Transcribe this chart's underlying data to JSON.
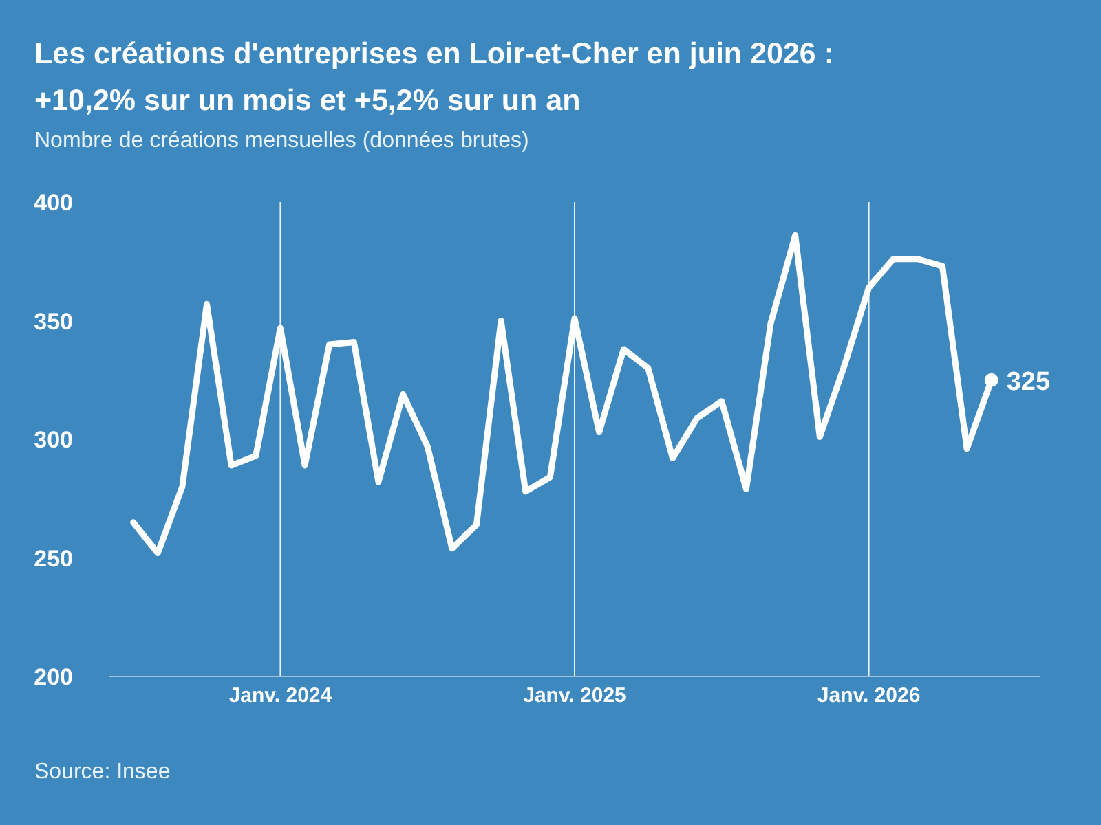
{
  "chart_data": {
    "type": "line",
    "title": "Les créations d'entreprises en Loir-et-Cher en juin 2026 :\n+10,2% sur un mois et +5,2% sur un an",
    "subtitle": "Nombre de créations mensuelles (données brutes)",
    "annotations": [
      "Source: Insee"
    ],
    "x": [
      "2023-07",
      "2023-08",
      "2023-09",
      "2023-10",
      "2023-11",
      "2023-12",
      "2024-01",
      "2024-02",
      "2024-03",
      "2024-04",
      "2024-05",
      "2024-06",
      "2024-07",
      "2024-08",
      "2024-09",
      "2024-10",
      "2024-11",
      "2024-12",
      "2025-01",
      "2025-02",
      "2025-03",
      "2025-04",
      "2025-05",
      "2025-06",
      "2025-07",
      "2025-08",
      "2025-09",
      "2025-10",
      "2025-11",
      "2025-12",
      "2026-01",
      "2026-02",
      "2026-03",
      "2026-04",
      "2026-05",
      "2026-06"
    ],
    "series": [
      {
        "color": "#ffffff",
        "values": [
          265,
          252,
          280,
          357,
          289,
          293,
          347,
          289,
          340,
          341,
          282,
          319,
          297,
          254,
          264,
          350,
          278,
          284,
          351,
          303,
          338,
          330,
          292,
          309,
          316,
          279,
          349,
          386,
          301,
          331,
          364,
          376,
          376,
          373,
          296,
          325
        ],
        "value_labels": [
          null,
          null,
          null,
          null,
          null,
          null,
          null,
          null,
          null,
          null,
          null,
          null,
          null,
          null,
          null,
          null,
          null,
          null,
          null,
          null,
          null,
          null,
          null,
          null,
          null,
          null,
          null,
          null,
          null,
          null,
          null,
          null,
          null,
          null,
          null,
          "325"
        ]
      }
    ],
    "xticks": [
      {
        "value": "2024-01",
        "label": "Janv. 2024"
      },
      {
        "value": "2025-01",
        "label": "Janv. 2025"
      },
      {
        "value": "2026-01",
        "label": "Janv. 2026"
      }
    ],
    "xlim": [
      "2023-06",
      "2026-08"
    ],
    "ylim": [
      200,
      400
    ],
    "yticks": [
      200,
      250,
      300,
      350,
      400
    ],
    "grid": "x",
    "line_style": "solid"
  }
}
